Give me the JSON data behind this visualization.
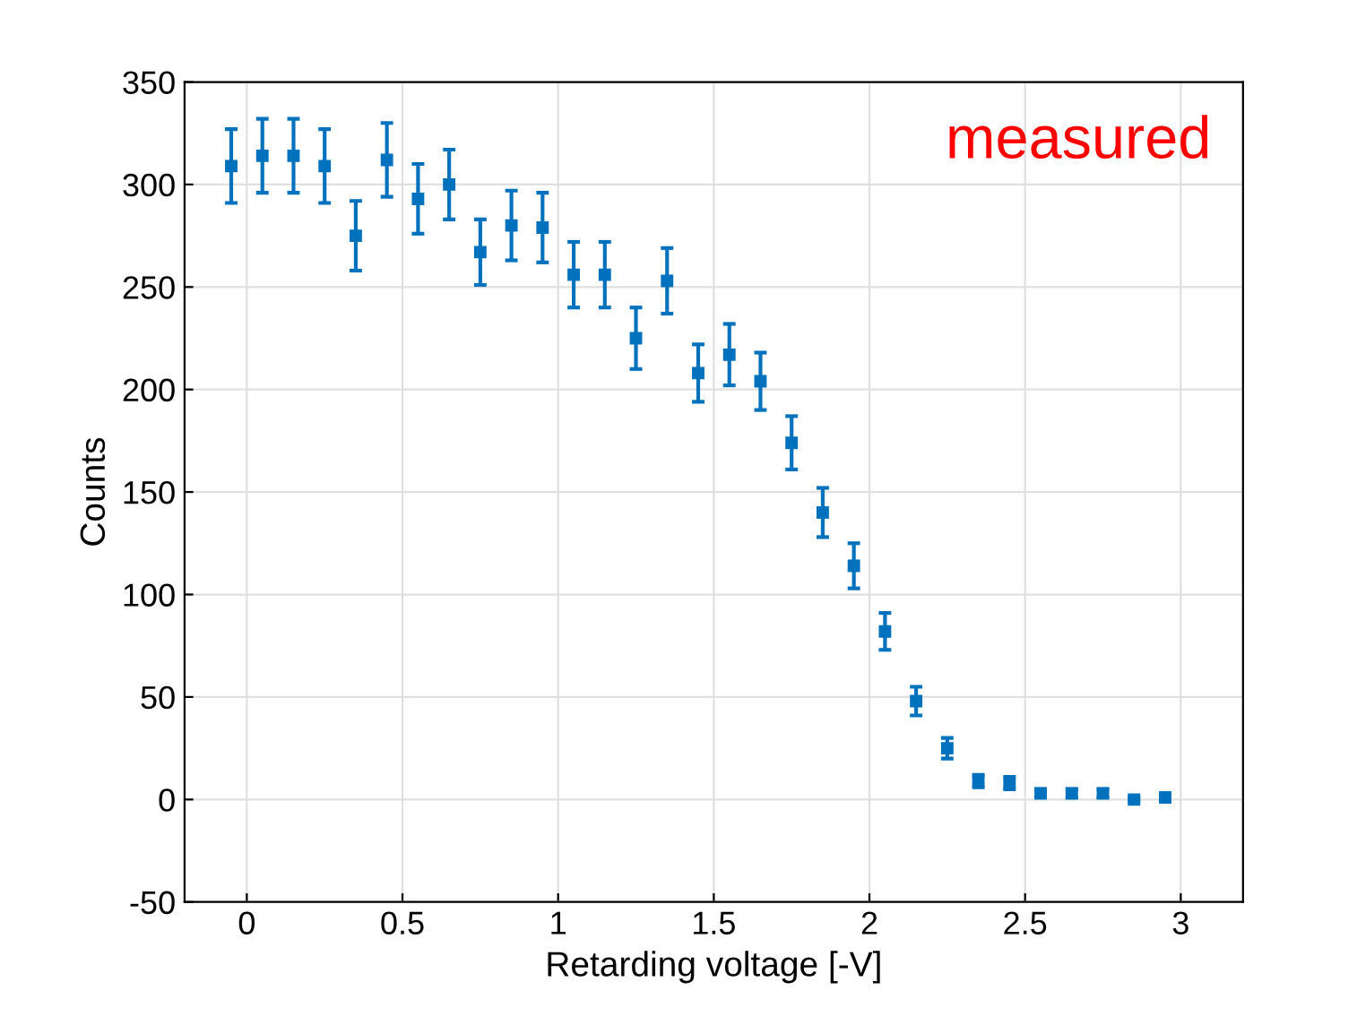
{
  "chart_data": {
    "type": "scatter",
    "xlabel": "Retarding voltage [-V]",
    "ylabel": "Counts",
    "annotations": [
      "measured"
    ],
    "x": [
      -0.05,
      0.05,
      0.15,
      0.25,
      0.35,
      0.45,
      0.55,
      0.65,
      0.75,
      0.85,
      0.95,
      1.05,
      1.15,
      1.25,
      1.35,
      1.45,
      1.55,
      1.65,
      1.75,
      1.85,
      1.95,
      2.05,
      2.15,
      2.25,
      2.35,
      2.45,
      2.55,
      2.65,
      2.75,
      2.85,
      2.95
    ],
    "series": [
      {
        "color": "#0072bd",
        "values": [
          309,
          314,
          314,
          309,
          275,
          312,
          293,
          300,
          267,
          280,
          279,
          256,
          256,
          225,
          253,
          208,
          217,
          204,
          174,
          140,
          114,
          82,
          48,
          25,
          9,
          8,
          3,
          3,
          3,
          0,
          1
        ],
        "errors": [
          18,
          18,
          18,
          18,
          17,
          18,
          17,
          17,
          16,
          17,
          17,
          16,
          16,
          15,
          16,
          14,
          15,
          14,
          13,
          12,
          11,
          9,
          7,
          5,
          3,
          3,
          2,
          2,
          2,
          1,
          1
        ]
      }
    ],
    "marker": "square",
    "xlim": [
      -0.2,
      3.2
    ],
    "ylim": [
      -50,
      350
    ],
    "xticks": [
      0,
      0.5,
      1,
      1.5,
      2,
      2.5,
      3
    ],
    "yticks": [
      -50,
      0,
      50,
      100,
      150,
      200,
      250,
      300,
      350
    ],
    "grid": true
  }
}
